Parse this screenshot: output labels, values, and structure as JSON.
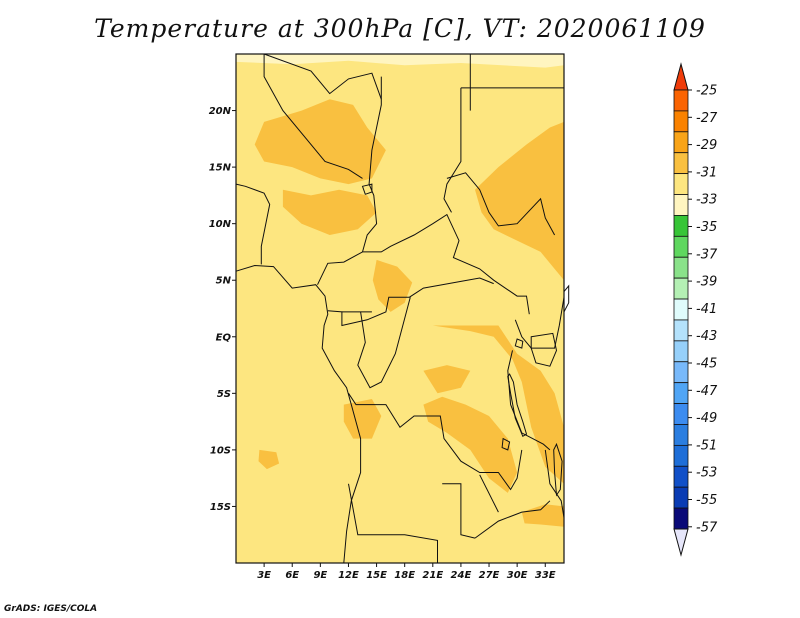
{
  "title": "Temperature at 300hPa [C], VT: 2020061109",
  "credit": "GrADS: IGES/COLA",
  "map": {
    "lon_range": [
      0,
      35
    ],
    "lat_range": [
      -20,
      25
    ],
    "lat_ticks": [
      {
        "value": 20,
        "label": "20N"
      },
      {
        "value": 15,
        "label": "15N"
      },
      {
        "value": 10,
        "label": "10N"
      },
      {
        "value": 5,
        "label": "5N"
      },
      {
        "value": 0,
        "label": "EQ"
      },
      {
        "value": -5,
        "label": "5S"
      },
      {
        "value": -10,
        "label": "10S"
      },
      {
        "value": -15,
        "label": "15S"
      }
    ],
    "lon_ticks": [
      {
        "value": 3,
        "label": "3E"
      },
      {
        "value": 6,
        "label": "6E"
      },
      {
        "value": 9,
        "label": "9E"
      },
      {
        "value": 12,
        "label": "12E"
      },
      {
        "value": 15,
        "label": "15E"
      },
      {
        "value": 18,
        "label": "18E"
      },
      {
        "value": 21,
        "label": "21E"
      },
      {
        "value": 24,
        "label": "24E"
      },
      {
        "value": 27,
        "label": "27E"
      },
      {
        "value": 30,
        "label": "30E"
      },
      {
        "value": 33,
        "label": "33E"
      }
    ],
    "colors": {
      "range_minus35_minus33": "#fff5c0",
      "range_minus33_minus31": "#fde680",
      "range_minus31_minus29": "#f9c040",
      "border": "#111111"
    }
  },
  "colorbar": {
    "labels": [
      "-25",
      "-27",
      "-29",
      "-31",
      "-33",
      "-35",
      "-37",
      "-39",
      "-41",
      "-43",
      "-45",
      "-47",
      "-49",
      "-51",
      "-53",
      "-55",
      "-57"
    ],
    "colors": [
      "#fa6402",
      "#fa8200",
      "#f9a418",
      "#f9c040",
      "#fde680",
      "#fff5c0",
      "#37c537",
      "#5fd75f",
      "#8ae28a",
      "#b4f0b4",
      "#e0fcfc",
      "#b4e2fc",
      "#96d0fa",
      "#78b9fa",
      "#50a5f5",
      "#3c8cf0",
      "#2b7ee0",
      "#1e6ed8",
      "#1150c8",
      "#0a3cb4",
      "#0a0a78"
    ],
    "top_arrow_color": "#f03c0a",
    "bottom_arrow_color": "#e6e6fa"
  }
}
